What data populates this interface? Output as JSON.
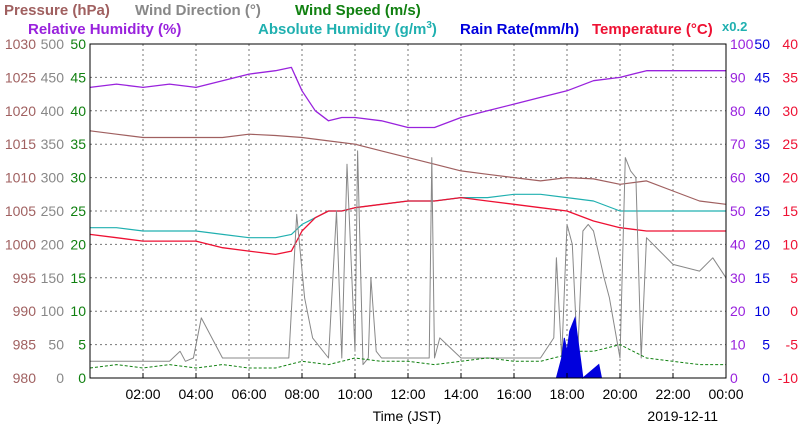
{
  "chart_data": {
    "type": "line",
    "date_label": "2019-12-11",
    "xlabel": "Time (JST)",
    "x_ticks": [
      "02:00",
      "04:00",
      "06:00",
      "08:00",
      "10:00",
      "12:00",
      "14:00",
      "16:00",
      "18:00",
      "20:00",
      "22:00",
      "00:00"
    ],
    "x_range_hours": [
      0,
      24
    ],
    "axes": {
      "pressure": {
        "label": "Pressure (hPa)",
        "color": "#a06060",
        "range": [
          980,
          1030
        ],
        "ticks": [
          980,
          985,
          990,
          995,
          1000,
          1005,
          1010,
          1015,
          1020,
          1025,
          1030
        ]
      },
      "wind_direction": {
        "label": "Wind Direction (°)",
        "color": "#888888",
        "range": [
          0,
          500
        ],
        "ticks": [
          0,
          50,
          100,
          150,
          200,
          250,
          300,
          350,
          400,
          450,
          500
        ]
      },
      "wind_speed": {
        "label": "Wind Speed (m/s)",
        "color": "#108010",
        "range": [
          0,
          50
        ],
        "ticks": [
          0,
          5,
          10,
          15,
          20,
          25,
          30,
          35,
          40,
          45,
          50
        ]
      },
      "humidity": {
        "label": "Relative Humidity (%)",
        "color": "#9922dd",
        "range": [
          0,
          100
        ],
        "ticks": [
          0,
          10,
          20,
          30,
          40,
          50,
          60,
          70,
          80,
          90,
          100
        ]
      },
      "abs_humidity": {
        "label": "Absolute Humidity (g/m",
        "sup": "3",
        "close": ")",
        "scale_note": "x0.2",
        "color": "#20b0b0"
      },
      "rain_rate": {
        "label": "Rain Rate(mm/h)",
        "color": "#0000dd",
        "range": [
          0,
          50
        ],
        "ticks": [
          0,
          5,
          10,
          15,
          20,
          25,
          30,
          35,
          40,
          45,
          50
        ]
      },
      "temperature": {
        "label": "Temperature (°C)",
        "color": "#ee1133",
        "range": [
          -10,
          40
        ],
        "ticks": [
          -10,
          -5,
          0,
          5,
          10,
          15,
          20,
          25,
          30,
          35,
          40
        ]
      }
    },
    "series": [
      {
        "name": "Relative Humidity (%)",
        "axis": "humidity",
        "x": [
          0,
          1,
          2,
          3,
          4,
          5,
          6,
          7,
          7.6,
          8,
          8.5,
          9,
          9.5,
          10,
          11,
          12,
          13,
          14,
          15,
          16,
          17,
          18,
          19,
          20,
          21,
          22,
          23,
          24
        ],
        "y": [
          87,
          88,
          87,
          88,
          87,
          89,
          91,
          92,
          93,
          86,
          80,
          77,
          78,
          78,
          77,
          75,
          75,
          78,
          80,
          82,
          84,
          86,
          89,
          90,
          92,
          92,
          92,
          92
        ]
      },
      {
        "name": "Pressure (hPa)",
        "axis": "pressure",
        "x": [
          0,
          1,
          2,
          3,
          4,
          5,
          6,
          7,
          8,
          9,
          10,
          11,
          12,
          13,
          14,
          15,
          16,
          17,
          18,
          19,
          20,
          21,
          22,
          23,
          24
        ],
        "y": [
          1017,
          1016.5,
          1016,
          1016,
          1016,
          1016,
          1016.5,
          1016.3,
          1016,
          1015.5,
          1015,
          1014,
          1013,
          1012,
          1011,
          1010.5,
          1010,
          1009.5,
          1010,
          1009.8,
          1009,
          1009.5,
          1008,
          1006.5,
          1006
        ]
      },
      {
        "name": "Absolute Humidity (g/m3)",
        "axis": "abs_humidity",
        "x": [
          0,
          1,
          2,
          3,
          4,
          5,
          6,
          7,
          7.6,
          8,
          8.5,
          9,
          9.5,
          10,
          11,
          12,
          13,
          14,
          15,
          16,
          17,
          18,
          19,
          20,
          21,
          22,
          23,
          24
        ],
        "y": [
          22.5,
          22.5,
          22,
          22,
          22,
          21.5,
          21,
          21,
          21.5,
          23,
          24,
          25,
          25,
          25.5,
          26,
          26.5,
          26.5,
          27,
          27,
          27.5,
          27.5,
          27,
          26.5,
          25,
          25,
          25,
          25,
          25
        ]
      },
      {
        "name": "Temperature (°C)",
        "axis": "temperature",
        "x": [
          0,
          1,
          2,
          3,
          4,
          5,
          6,
          7,
          7.6,
          8,
          8.5,
          9,
          9.5,
          10,
          11,
          12,
          13,
          14,
          15,
          16,
          17,
          18,
          19,
          20,
          21,
          22,
          23,
          24
        ],
        "y": [
          11.5,
          11,
          10.5,
          10.5,
          10.5,
          9.5,
          9,
          8.5,
          9,
          12,
          14,
          15,
          15,
          15.5,
          16,
          16.5,
          16.5,
          17,
          16.5,
          16,
          15.5,
          15,
          13.5,
          12.5,
          12,
          12,
          12,
          12
        ]
      },
      {
        "name": "Wind Direction (°)",
        "axis": "wind_direction",
        "x": [
          0,
          1.5,
          3,
          3.4,
          3.6,
          3.9,
          4.2,
          5,
          6,
          7.5,
          7.8,
          8.1,
          8.4,
          9,
          9.3,
          9.5,
          9.7,
          10,
          10.1,
          10.3,
          10.5,
          10.6,
          10.8,
          11,
          12,
          12.8,
          12.9,
          13,
          13.2,
          14,
          15,
          16,
          16.5,
          17,
          17.5,
          17.6,
          17.8,
          18,
          18.2,
          18.4,
          18.6,
          18.8,
          19,
          19.4,
          19.6,
          20,
          20.2,
          20.4,
          20.6,
          20.8,
          21,
          21.5,
          22,
          23,
          23.5,
          24
        ],
        "y": [
          25,
          25,
          25,
          40,
          25,
          30,
          90,
          30,
          30,
          30,
          245,
          120,
          60,
          30,
          250,
          30,
          320,
          40,
          340,
          20,
          30,
          150,
          40,
          30,
          30,
          30,
          330,
          30,
          60,
          30,
          30,
          30,
          30,
          30,
          60,
          180,
          30,
          230,
          200,
          30,
          220,
          230,
          220,
          150,
          120,
          30,
          330,
          310,
          300,
          30,
          210,
          190,
          170,
          160,
          180,
          150
        ]
      },
      {
        "name": "Wind Speed (m/s)",
        "axis": "wind_speed",
        "x": [
          0,
          1,
          2,
          3,
          4,
          5,
          6,
          7,
          8,
          9,
          10,
          11,
          12,
          13,
          14,
          15,
          16,
          17,
          18,
          18.5,
          19,
          20,
          21,
          22,
          23,
          24
        ],
        "y": [
          1.5,
          2,
          1.5,
          2,
          1.5,
          2,
          1.5,
          1.5,
          2.5,
          2,
          3,
          2.5,
          2.5,
          2,
          2.5,
          3,
          2.5,
          2.5,
          3.5,
          4,
          4,
          5,
          3,
          2.5,
          2,
          2
        ]
      },
      {
        "name": "Rain Rate(mm/h)",
        "axis": "rain_rate",
        "x": [
          17.6,
          17.8,
          17.9,
          18,
          18.1,
          18.2,
          18.3,
          18.4,
          18.5,
          18.6,
          19.2,
          19.3
        ],
        "y": [
          0,
          3,
          6,
          4,
          7,
          8,
          9,
          6,
          3,
          0,
          2,
          0
        ]
      }
    ],
    "grid": true
  }
}
